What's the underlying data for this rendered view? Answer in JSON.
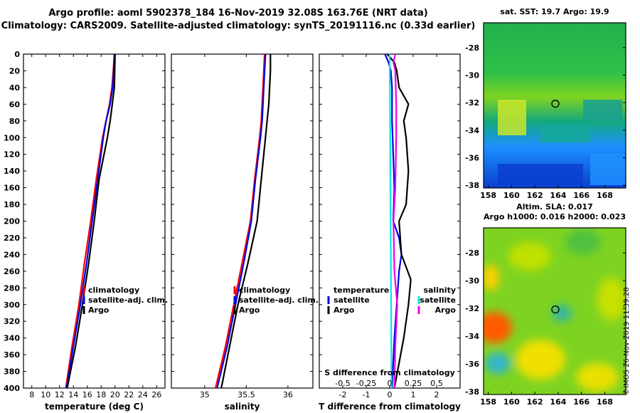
{
  "titles": {
    "line1": "Argo profile: aoml 5902378_184 16-Nov-2019 32.08S 163.76E (NRT data)",
    "line2": "Climatology: CARS2009. Satellite-adjusted climatology: synTS_20191116.nc (0.33d earlier)"
  },
  "colors": {
    "climatology": "#ff0000",
    "satellite": "#0000dd",
    "argo": "#000000",
    "sat_salinity": "#00e6e6",
    "argo_salinity": "#ee00ee"
  },
  "chart_data": [
    {
      "type": "line",
      "name": "temperature-profile",
      "xlabel": "temperature (deg C)",
      "ylabel": "",
      "xlim": [
        6.8,
        27.2
      ],
      "ylim": [
        400,
        0
      ],
      "x_ticks": [
        8,
        10,
        12,
        14,
        16,
        18,
        20,
        22,
        24,
        26
      ],
      "y_ticks": [
        0,
        20,
        40,
        60,
        80,
        100,
        120,
        140,
        160,
        180,
        200,
        220,
        240,
        260,
        280,
        300,
        320,
        340,
        360,
        380,
        400
      ],
      "legend": [
        "climatology",
        "satellite-adj. clim.",
        "Argo"
      ],
      "series": [
        {
          "name": "climatology",
          "color": "#ff0000",
          "depth": [
            0,
            20,
            40,
            60,
            80,
            100,
            150,
            200,
            250,
            300,
            350,
            400
          ],
          "values": [
            19.9,
            19.75,
            19.55,
            19.2,
            18.7,
            18.2,
            17.3,
            16.5,
            15.6,
            14.8,
            13.8,
            12.9
          ]
        },
        {
          "name": "satellite-adj. clim.",
          "color": "#0000dd",
          "depth": [
            0,
            20,
            40,
            60,
            80,
            100,
            150,
            200,
            250,
            300,
            350,
            400
          ],
          "values": [
            19.9,
            19.8,
            19.65,
            19.3,
            18.7,
            18.3,
            17.5,
            16.7,
            15.9,
            15.0,
            14.0,
            13.0
          ]
        },
        {
          "name": "Argo",
          "color": "#000000",
          "depth": [
            0,
            20,
            40,
            60,
            80,
            100,
            150,
            200,
            250,
            300,
            350,
            400
          ],
          "values": [
            20.0,
            19.95,
            19.9,
            19.6,
            19.3,
            18.9,
            17.7,
            17.0,
            16.2,
            15.3,
            14.3,
            13.1
          ]
        }
      ]
    },
    {
      "type": "line",
      "name": "salinity-profile",
      "xlabel": "salinity",
      "xlim": [
        34.6,
        36.3
      ],
      "ylim": [
        400,
        0
      ],
      "x_ticks": [
        35,
        35.5,
        36
      ],
      "x_tick_labels": [
        "35",
        "35.5",
        "36"
      ],
      "legend": [
        "climatology",
        "satellite-adj. clim.",
        "Argo"
      ],
      "series": [
        {
          "name": "climatology",
          "color": "#ff0000",
          "depth": [
            0,
            20,
            40,
            60,
            80,
            100,
            150,
            200,
            250,
            300,
            350,
            400
          ],
          "values": [
            35.72,
            35.71,
            35.7,
            35.69,
            35.68,
            35.66,
            35.6,
            35.55,
            35.45,
            35.35,
            35.25,
            35.13
          ]
        },
        {
          "name": "satellite-adj. clim.",
          "color": "#0000dd",
          "depth": [
            0,
            20,
            40,
            60,
            80,
            100,
            150,
            200,
            250,
            300,
            350,
            400
          ],
          "values": [
            35.73,
            35.72,
            35.71,
            35.7,
            35.69,
            35.67,
            35.61,
            35.56,
            35.47,
            35.37,
            35.27,
            35.15
          ]
        },
        {
          "name": "Argo",
          "color": "#000000",
          "depth": [
            0,
            20,
            40,
            60,
            80,
            100,
            150,
            200,
            250,
            300,
            350,
            400
          ],
          "values": [
            35.79,
            35.79,
            35.78,
            35.77,
            35.75,
            35.73,
            35.68,
            35.63,
            35.52,
            35.4,
            35.3,
            35.2
          ]
        }
      ]
    },
    {
      "type": "line",
      "name": "difference-profile",
      "xlabel": "T difference from climatology",
      "xlim": [
        -3,
        3
      ],
      "ylim": [
        400,
        0
      ],
      "x_ticks": [
        -2,
        -1,
        0,
        1,
        2
      ],
      "top_axis_label": "S difference from climatology",
      "s_ticks": [
        -0.5,
        -0.25,
        0,
        0.25,
        0.5
      ],
      "s_tick_labels": [
        "-0.5",
        "-0.25",
        "0",
        "0.25",
        "0.5"
      ],
      "legend_temperature": {
        "title": "temperature",
        "items": [
          "satellite",
          "Argo"
        ]
      },
      "legend_salinity": {
        "title": "salinity",
        "items": [
          "satellite",
          "Argo"
        ]
      },
      "series": [
        {
          "name": "T satellite",
          "color": "#0000dd",
          "depth": [
            0,
            10,
            20,
            40,
            80,
            120,
            160,
            200,
            220,
            240,
            260,
            300,
            340,
            400
          ],
          "values": [
            -0.2,
            -0.05,
            0.05,
            0.1,
            0.1,
            0.15,
            0.2,
            0.15,
            0.4,
            0.5,
            0.4,
            0.3,
            0.2,
            0.1
          ]
        },
        {
          "name": "T Argo",
          "color": "#000000",
          "depth": [
            0,
            10,
            20,
            40,
            60,
            80,
            100,
            140,
            180,
            200,
            240,
            270,
            300,
            340,
            400
          ],
          "values": [
            -0.1,
            0.2,
            0.3,
            0.4,
            0.8,
            0.6,
            0.7,
            0.8,
            0.7,
            0.4,
            0.5,
            0.9,
            0.8,
            0.6,
            0.2
          ]
        },
        {
          "name": "S satellite",
          "color": "#00e6e6",
          "depth": [
            0,
            100,
            200,
            300,
            400
          ],
          "values": [
            0.0,
            0.005,
            0.01,
            0.015,
            0.02
          ]
        },
        {
          "name": "S Argo",
          "color": "#ee00ee",
          "depth": [
            0,
            10,
            20,
            60,
            100,
            160,
            200,
            260,
            300,
            350,
            400
          ],
          "values": [
            0.06,
            0.04,
            0.06,
            0.07,
            0.07,
            0.06,
            0.04,
            0.05,
            0.08,
            0.06,
            0.05
          ]
        }
      ]
    },
    {
      "type": "heatmap",
      "name": "sst-map",
      "title": "sat. SST: 19.7 Argo: 19.9",
      "x_ticks": [
        158,
        160,
        162,
        164,
        166,
        168
      ],
      "y_ticks": [
        -28,
        -30,
        -32,
        -34,
        -36,
        -38
      ],
      "xlim": [
        157.6,
        169.8
      ],
      "ylim": [
        -38.2,
        -26.2
      ],
      "float_position": [
        163.76,
        -32.08
      ]
    },
    {
      "type": "heatmap",
      "name": "sla-map",
      "title_line1": "Altim. SLA: 0.017",
      "title_line2": "Argo h1000: 0.016 h2000: 0.023",
      "x_ticks": [
        158,
        160,
        162,
        164,
        166,
        168
      ],
      "y_ticks": [
        -28,
        -30,
        -32,
        -34,
        -36,
        -38
      ],
      "xlim": [
        157.6,
        169.8
      ],
      "ylim": [
        -38.2,
        -26.2
      ],
      "float_position": [
        163.76,
        -32.08
      ]
    }
  ],
  "footer": {
    "stamp": "©IMOS 26-Nov-2019 11:39:28"
  }
}
